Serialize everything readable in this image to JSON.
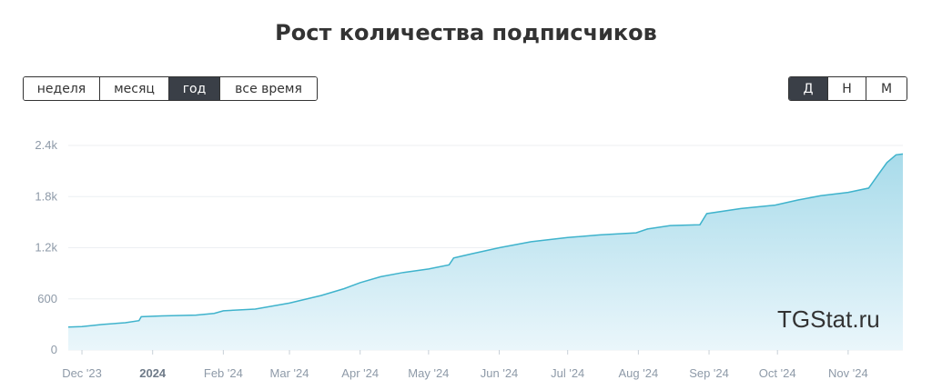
{
  "title": "Рост количества подписчиков",
  "periods": [
    {
      "label": "неделя",
      "active": false
    },
    {
      "label": "месяц",
      "active": false
    },
    {
      "label": "год",
      "active": true
    },
    {
      "label": "все время",
      "active": false
    }
  ],
  "units": [
    {
      "label": "Д",
      "active": true
    },
    {
      "label": "Н",
      "active": false
    },
    {
      "label": "М",
      "active": false
    }
  ],
  "watermark": "TGStat.ru",
  "colors": {
    "line": "#3fb3cc",
    "fill_top": "#a8dbea",
    "fill_bottom": "#eaf6fb"
  },
  "chart_data": {
    "type": "area",
    "x_ticks": [
      {
        "date": "2023-12-01",
        "label": "Dec '23",
        "bold": false
      },
      {
        "date": "2024-01-01",
        "label": "2024",
        "bold": true
      },
      {
        "date": "2024-02-01",
        "label": "Feb '24",
        "bold": false
      },
      {
        "date": "2024-03-01",
        "label": "Mar '24",
        "bold": false
      },
      {
        "date": "2024-04-01",
        "label": "Apr '24",
        "bold": false
      },
      {
        "date": "2024-05-01",
        "label": "May '24",
        "bold": false
      },
      {
        "date": "2024-06-01",
        "label": "Jun '24",
        "bold": false
      },
      {
        "date": "2024-07-01",
        "label": "Jul '24",
        "bold": false
      },
      {
        "date": "2024-08-01",
        "label": "Aug '24",
        "bold": false
      },
      {
        "date": "2024-09-01",
        "label": "Sep '24",
        "bold": false
      },
      {
        "date": "2024-10-01",
        "label": "Oct '24",
        "bold": false
      },
      {
        "date": "2024-11-01",
        "label": "Nov '24",
        "bold": false
      }
    ],
    "y_ticks": [
      0,
      600,
      1200,
      1800,
      2400
    ],
    "y_tick_labels": [
      "0",
      "600",
      "1.2k",
      "1.8k",
      "2.4k"
    ],
    "ylim": [
      0,
      2400
    ],
    "xlim": [
      "2023-11-25",
      "2024-11-25"
    ],
    "grid": true,
    "series": [
      {
        "points": [
          [
            "2023-11-25",
            270
          ],
          [
            "2023-12-01",
            275
          ],
          [
            "2023-12-10",
            300
          ],
          [
            "2023-12-20",
            320
          ],
          [
            "2023-12-26",
            345
          ],
          [
            "2023-12-27",
            390
          ],
          [
            "2024-01-05",
            400
          ],
          [
            "2024-01-20",
            410
          ],
          [
            "2024-01-28",
            430
          ],
          [
            "2024-02-01",
            460
          ],
          [
            "2024-02-15",
            480
          ],
          [
            "2024-03-01",
            550
          ],
          [
            "2024-03-15",
            640
          ],
          [
            "2024-03-25",
            720
          ],
          [
            "2024-04-01",
            790
          ],
          [
            "2024-04-10",
            860
          ],
          [
            "2024-04-20",
            910
          ],
          [
            "2024-05-01",
            950
          ],
          [
            "2024-05-10",
            1000
          ],
          [
            "2024-05-12",
            1080
          ],
          [
            "2024-05-20",
            1130
          ],
          [
            "2024-06-01",
            1200
          ],
          [
            "2024-06-15",
            1270
          ],
          [
            "2024-07-01",
            1320
          ],
          [
            "2024-07-15",
            1350
          ],
          [
            "2024-07-31",
            1375
          ],
          [
            "2024-08-05",
            1420
          ],
          [
            "2024-08-15",
            1460
          ],
          [
            "2024-08-28",
            1470
          ],
          [
            "2024-08-31",
            1600
          ],
          [
            "2024-09-15",
            1660
          ],
          [
            "2024-09-30",
            1700
          ],
          [
            "2024-10-10",
            1760
          ],
          [
            "2024-10-20",
            1810
          ],
          [
            "2024-11-01",
            1850
          ],
          [
            "2024-11-10",
            1900
          ],
          [
            "2024-11-14",
            2050
          ],
          [
            "2024-11-18",
            2200
          ],
          [
            "2024-11-22",
            2290
          ],
          [
            "2024-11-25",
            2300
          ]
        ]
      }
    ]
  }
}
